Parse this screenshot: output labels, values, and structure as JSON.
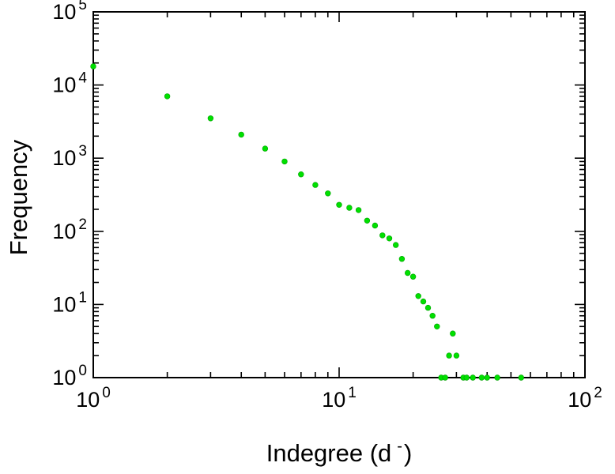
{
  "figure": {
    "background_color": "#ffffff",
    "axis_color": "#000000",
    "text_color": "#000000"
  },
  "labels": {
    "ylabel": "Frequency",
    "xlabel_prefix": "Indegree (d",
    "xlabel_sup": "-",
    "xlabel_suffix": ")",
    "tick_base": "10",
    "x_tick_exponents": [
      "0",
      "1",
      "2"
    ],
    "y_tick_exponents": [
      "0",
      "1",
      "2",
      "3",
      "4",
      "5"
    ]
  },
  "chart_data": {
    "type": "scatter",
    "title": "",
    "xlabel": "Indegree (d^-)",
    "ylabel": "Frequency",
    "x_scale": "log",
    "y_scale": "log",
    "xlim": [
      1,
      100
    ],
    "ylim": [
      1,
      100000
    ],
    "grid": false,
    "legend": false,
    "marker": {
      "shape": "circle",
      "color": "#00e000",
      "edge_color": "#00a000",
      "radius": 3.4
    },
    "points": [
      [
        1,
        18000
      ],
      [
        2,
        7000
      ],
      [
        3,
        3500
      ],
      [
        4,
        2100
      ],
      [
        5,
        1350
      ],
      [
        6,
        900
      ],
      [
        7,
        600
      ],
      [
        8,
        430
      ],
      [
        9,
        330
      ],
      [
        10,
        230
      ],
      [
        11,
        210
      ],
      [
        12,
        195
      ],
      [
        13,
        140
      ],
      [
        14,
        120
      ],
      [
        15,
        88
      ],
      [
        16,
        80
      ],
      [
        17,
        65
      ],
      [
        18,
        42
      ],
      [
        19,
        27
      ],
      [
        20,
        24
      ],
      [
        21,
        13
      ],
      [
        22,
        11
      ],
      [
        23,
        9
      ],
      [
        24,
        7
      ],
      [
        25,
        5
      ],
      [
        26,
        1
      ],
      [
        27,
        1
      ],
      [
        28,
        2
      ],
      [
        29,
        4
      ],
      [
        30,
        2
      ],
      [
        32,
        1
      ],
      [
        33,
        1
      ],
      [
        35,
        1
      ],
      [
        38,
        1
      ],
      [
        40,
        1
      ],
      [
        44,
        1
      ],
      [
        55,
        1
      ]
    ]
  }
}
